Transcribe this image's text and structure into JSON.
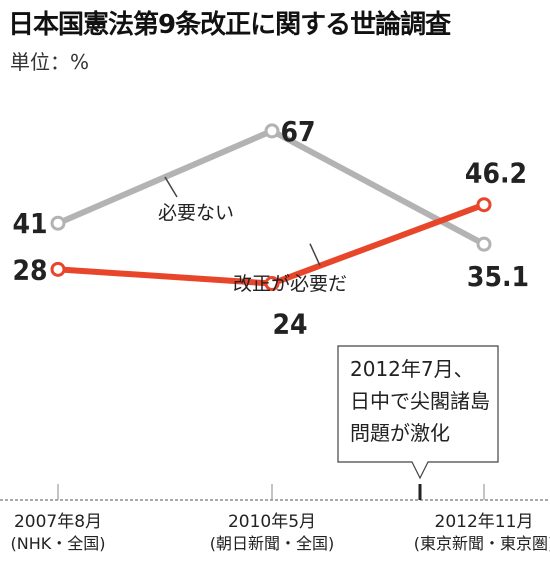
{
  "title": "日本国憲法第9条改正に関する世論調査",
  "unit": "単位：%",
  "chart_data": {
    "type": "line",
    "categories": [
      {
        "date": "2007年8月",
        "source": "(NHK・全国)"
      },
      {
        "date": "2010年5月",
        "source": "(朝日新聞・全国)"
      },
      {
        "date": "2012年11月",
        "source": "(東京新聞・東京圏)"
      }
    ],
    "series": [
      {
        "name": "必要ない",
        "color": "#b3b3b3",
        "values": [
          41,
          67,
          35.1
        ],
        "labels": [
          "41",
          "67",
          "35.1"
        ]
      },
      {
        "name": "改正が必要だ",
        "color": "#e8462a",
        "values": [
          28,
          24,
          46.2
        ],
        "labels": [
          "28",
          "24",
          "46.2"
        ]
      }
    ],
    "annotation": {
      "date": "2012年7月",
      "lines": [
        "2012年7月、",
        "日中で尖閣諸島",
        "問題が激化"
      ]
    }
  }
}
